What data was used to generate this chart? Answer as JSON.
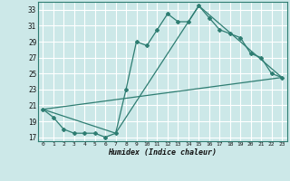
{
  "title": "",
  "xlabel": "Humidex (Indice chaleur)",
  "bg_color": "#cce8e8",
  "grid_color": "#ffffff",
  "line_color": "#2e7d72",
  "xlim": [
    -0.5,
    23.5
  ],
  "ylim": [
    16.5,
    34.0
  ],
  "xticks": [
    0,
    1,
    2,
    3,
    4,
    5,
    6,
    7,
    8,
    9,
    10,
    11,
    12,
    13,
    14,
    15,
    16,
    17,
    18,
    19,
    20,
    21,
    22,
    23
  ],
  "yticks": [
    17,
    19,
    21,
    23,
    25,
    27,
    29,
    31,
    33
  ],
  "line1_x": [
    0,
    1,
    2,
    3,
    4,
    5,
    6,
    7,
    8,
    9,
    10,
    11,
    12,
    13,
    14,
    15,
    16,
    17,
    18,
    19,
    20,
    21,
    22,
    23
  ],
  "line1_y": [
    20.5,
    19.5,
    18.0,
    17.5,
    17.5,
    17.5,
    17.0,
    17.5,
    23.0,
    29.0,
    28.5,
    30.5,
    32.5,
    31.5,
    31.5,
    33.5,
    32.0,
    30.5,
    30.0,
    29.5,
    27.5,
    27.0,
    25.0,
    24.5
  ],
  "line2_x": [
    0,
    23
  ],
  "line2_y": [
    20.5,
    24.5
  ],
  "line3_x": [
    0,
    7,
    15,
    23
  ],
  "line3_y": [
    20.5,
    17.5,
    33.5,
    24.5
  ]
}
